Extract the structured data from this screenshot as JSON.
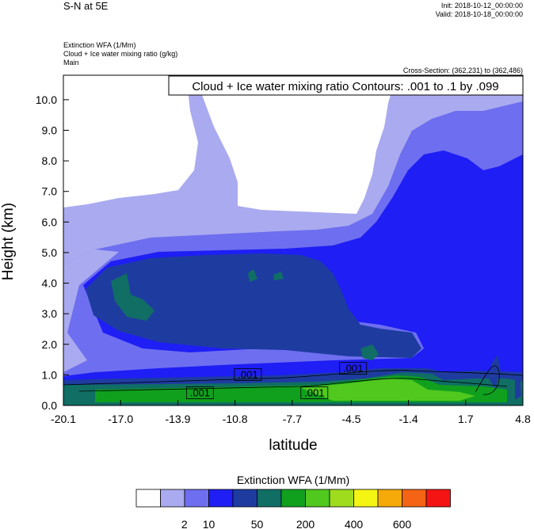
{
  "header": {
    "main_title": "S-N at 5E",
    "init": "Init: 2018-10-12_00:00:00",
    "valid": "Valid: 2018-10-18_00:00:00",
    "field1": "Extinction WFA   (1/Mm)",
    "field2": "Cloud + Ice water mixing ratio   (g/kg)",
    "field3": "Main",
    "cross_section": "Cross-Section: (362,231) to (362,486)",
    "contour_info": "Cloud + Ice water mixing ratio Contours: .001 to .1 by .099"
  },
  "chart_data": {
    "type": "heatmap",
    "title": "S-N at 5E",
    "xlabel": "latitude",
    "ylabel": "Height (km)",
    "x_ticks": [
      "-20.1",
      "-17.0",
      "-13.9",
      "-10.8",
      "-7.7",
      "-4.5",
      "-1.4",
      "1.7",
      "4.8"
    ],
    "y_ticks": [
      "0.0",
      "1.0",
      "2.0",
      "3.0",
      "4.0",
      "5.0",
      "6.0",
      "7.0",
      "8.0",
      "9.0",
      "10.0"
    ],
    "xlim": [
      -20.1,
      4.8
    ],
    "ylim": [
      0.0,
      10.8
    ],
    "contour_labels": [
      {
        "text": ".001",
        "x": -10.1,
        "y": 1.0
      },
      {
        "text": ".001",
        "x": -4.4,
        "y": 1.2
      },
      {
        "text": ".001",
        "x": -12.7,
        "y": 0.4
      },
      {
        "text": ".001",
        "x": -6.5,
        "y": 0.4
      }
    ],
    "colorbar": {
      "title": "Extinction WFA  (1/Mm)",
      "colors": [
        "#ffffff",
        "#aaaaf0",
        "#6e6ef0",
        "#1e1ef5",
        "#1e3ca0",
        "#106e64",
        "#10a01e",
        "#50c81e",
        "#a0dc1e",
        "#f5f514",
        "#f5aa0a",
        "#f56414",
        "#f51414"
      ],
      "labels": [
        "2",
        "10",
        "50",
        "200",
        "400",
        "600"
      ]
    },
    "grid": false
  }
}
